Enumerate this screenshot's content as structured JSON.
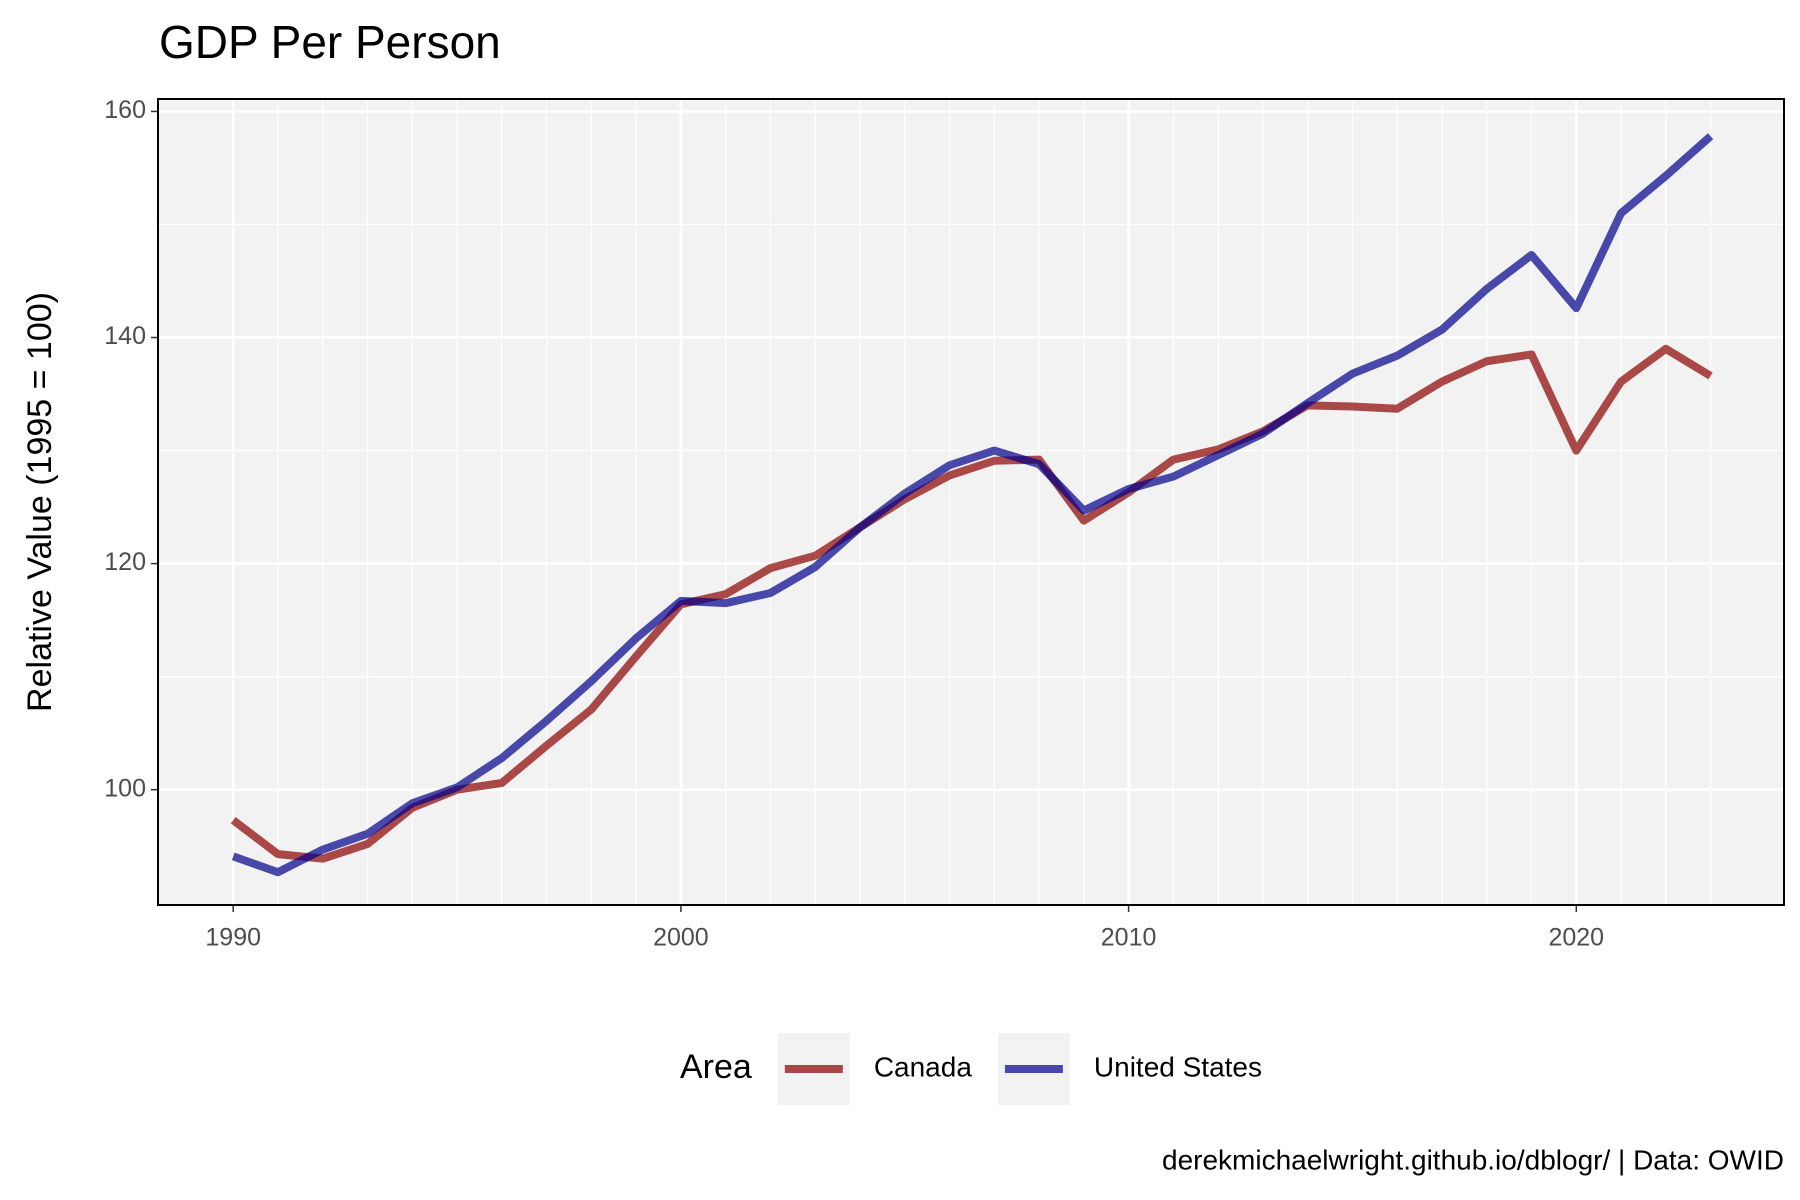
{
  "chart_data": {
    "type": "line",
    "title": "GDP Per Person",
    "y_label": "Relative Value (1995 = 100)",
    "legend_title": "Area",
    "legend_position": "bottom",
    "caption": "derekmichaelwright.github.io/dblogr/ | Data: OWID",
    "grid": true,
    "x": [
      1990,
      1991,
      1992,
      1993,
      1994,
      1995,
      1996,
      1997,
      1998,
      1999,
      2000,
      2001,
      2002,
      2003,
      2004,
      2005,
      2006,
      2007,
      2008,
      2009,
      2010,
      2011,
      2012,
      2013,
      2014,
      2015,
      2016,
      2017,
      2018,
      2019,
      2020,
      2021,
      2022,
      2023
    ],
    "series": [
      {
        "name": "Canada",
        "color": "#8b0000",
        "values": [
          97.3,
          94.3,
          93.9,
          95.2,
          98.4,
          100,
          100.6,
          103.9,
          107.1,
          111.8,
          116.4,
          117.3,
          119.6,
          120.7,
          123.2,
          125.7,
          127.8,
          129.1,
          129.2,
          123.8,
          126.3,
          129.2,
          130.1,
          131.7,
          134.0,
          133.9,
          133.7,
          136.1,
          137.9,
          138.5,
          130.0,
          136.1,
          139.0,
          136.6
        ]
      },
      {
        "name": "United States",
        "color": "#00008b",
        "values": [
          94.1,
          92.7,
          94.7,
          96.1,
          98.8,
          100.2,
          102.8,
          106.1,
          109.6,
          113.4,
          116.7,
          116.5,
          117.4,
          119.7,
          123.2,
          126.2,
          128.7,
          130.0,
          128.8,
          124.7,
          126.6,
          127.7,
          129.6,
          131.5,
          134.2,
          136.8,
          138.4,
          140.7,
          144.3,
          147.3,
          142.6,
          151.0,
          154.3,
          157.8
        ]
      }
    ],
    "xlim": [
      1988.32,
      2024.64
    ],
    "xticks": [
      1990,
      2000,
      2010,
      2020
    ],
    "ylim": [
      89.8,
      161.1
    ],
    "yticks": [
      100,
      120,
      140,
      160
    ]
  }
}
